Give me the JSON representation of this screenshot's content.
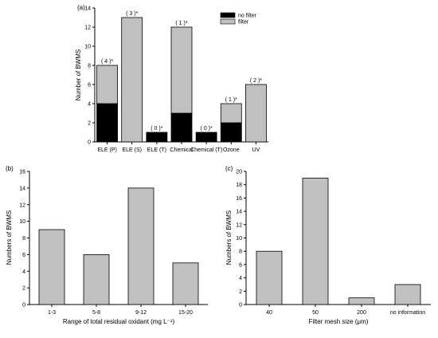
{
  "chart_data": [
    {
      "type": "bar",
      "panel": "(a)",
      "stacked": true,
      "categories": [
        "ELE (P)",
        "ELE (S)",
        "ELE (T)",
        "Chemical",
        "Chemical (T)",
        "Ozone",
        "UV"
      ],
      "series": [
        {
          "name": "no filter",
          "color": "#000000",
          "values": [
            4,
            0,
            1,
            3,
            1,
            2,
            0
          ]
        },
        {
          "name": "filter",
          "color": "#c0c0c0",
          "values": [
            4,
            13,
            0,
            9,
            0,
            2,
            6
          ]
        }
      ],
      "annotations": [
        "( 4 )*",
        "( 3 )*",
        "( 0 )*",
        "( 1 )*",
        "( 0 )*",
        "( 1 )*",
        "( 2 )*"
      ],
      "xlabel": "",
      "ylabel": "Number of BWMS",
      "ylim": [
        0,
        14
      ],
      "yticks": [
        0,
        2,
        4,
        6,
        8,
        10,
        12,
        14
      ],
      "legend": "top-right"
    },
    {
      "type": "bar",
      "panel": "(b)",
      "categories": [
        "1-3",
        "5-8",
        "9-12",
        "15-20"
      ],
      "values": [
        9,
        6,
        14,
        5
      ],
      "color": "#c0c0c0",
      "xlabel": "Range of  total residual oxidant (mg L⁻¹)",
      "ylabel": "Numbers of BWMS",
      "ylim": [
        0,
        16
      ],
      "yticks": [
        0,
        2,
        4,
        6,
        8,
        10,
        12,
        14,
        16
      ]
    },
    {
      "type": "bar",
      "panel": "(c)",
      "categories": [
        "40",
        "50",
        "200",
        "no information"
      ],
      "values": [
        8,
        19,
        1,
        3
      ],
      "color": "#c0c0c0",
      "xlabel": "Filter mesh size (μm)",
      "ylabel": "Numbers of BWMS",
      "ylim": [
        0,
        20
      ],
      "yticks": [
        0,
        2,
        4,
        6,
        8,
        10,
        12,
        14,
        16,
        18,
        20
      ]
    }
  ]
}
